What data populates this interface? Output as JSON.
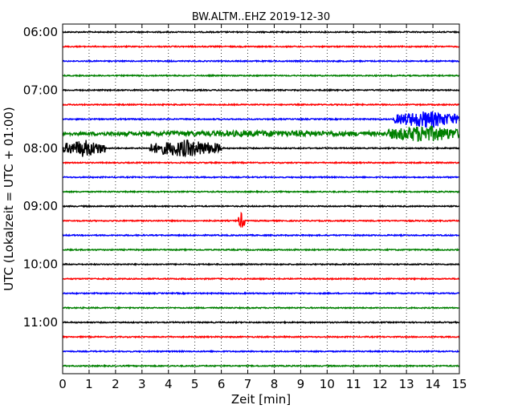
{
  "chart_data": {
    "type": "line",
    "title": "BW.ALTM..EHZ 2019-12-30",
    "xlabel": "Zeit  [min]",
    "ylabel": "UTC (Lokalzeit = UTC + 01:00)",
    "xlim": [
      0,
      15
    ],
    "x_ticks": [
      "0",
      "1",
      "2",
      "3",
      "4",
      "5",
      "6",
      "7",
      "8",
      "9",
      "10",
      "11",
      "12",
      "13",
      "14",
      "15"
    ],
    "y_tick_labels": [
      "06:00",
      "07:00",
      "08:00",
      "09:00",
      "10:00",
      "11:00"
    ],
    "trace_interval_minutes": 15,
    "colors": [
      "#000000",
      "#ff0000",
      "#0000ff",
      "#008000"
    ],
    "grid": "vertical dotted at each minute",
    "traces": [
      {
        "start": "06:00",
        "color": "#000000",
        "events": []
      },
      {
        "start": "06:15",
        "color": "#ff0000",
        "events": []
      },
      {
        "start": "06:30",
        "color": "#0000ff",
        "events": []
      },
      {
        "start": "06:45",
        "color": "#008000",
        "events": []
      },
      {
        "start": "07:00",
        "color": "#000000",
        "events": []
      },
      {
        "start": "07:15",
        "color": "#ff0000",
        "events": []
      },
      {
        "start": "07:30",
        "color": "#0000ff",
        "events": [
          {
            "from": 12.5,
            "to": 15.0,
            "amp": 1.0
          }
        ]
      },
      {
        "start": "07:45",
        "color": "#008000",
        "events": [
          {
            "from": 0.0,
            "to": 15.0,
            "amp": 0.35
          },
          {
            "from": 12.3,
            "to": 15.0,
            "amp": 1.0
          }
        ]
      },
      {
        "start": "08:00",
        "color": "#000000",
        "events": [
          {
            "from": 0.0,
            "to": 1.6,
            "amp": 1.0
          },
          {
            "from": 3.3,
            "to": 6.0,
            "amp": 1.0
          }
        ]
      },
      {
        "start": "08:15",
        "color": "#ff0000",
        "events": []
      },
      {
        "start": "08:30",
        "color": "#0000ff",
        "events": []
      },
      {
        "start": "08:45",
        "color": "#008000",
        "events": []
      },
      {
        "start": "09:00",
        "color": "#000000",
        "events": []
      },
      {
        "start": "09:15",
        "color": "#ff0000",
        "events": [
          {
            "from": 6.65,
            "to": 6.9,
            "amp": 1.0
          }
        ]
      },
      {
        "start": "09:30",
        "color": "#0000ff",
        "events": []
      },
      {
        "start": "09:45",
        "color": "#008000",
        "events": []
      },
      {
        "start": "10:00",
        "color": "#000000",
        "events": []
      },
      {
        "start": "10:15",
        "color": "#ff0000",
        "events": []
      },
      {
        "start": "10:30",
        "color": "#0000ff",
        "events": []
      },
      {
        "start": "10:45",
        "color": "#008000",
        "events": []
      },
      {
        "start": "11:00",
        "color": "#000000",
        "events": []
      },
      {
        "start": "11:15",
        "color": "#ff0000",
        "events": []
      },
      {
        "start": "11:30",
        "color": "#0000ff",
        "events": []
      },
      {
        "start": "11:45",
        "color": "#008000",
        "events": []
      }
    ]
  }
}
